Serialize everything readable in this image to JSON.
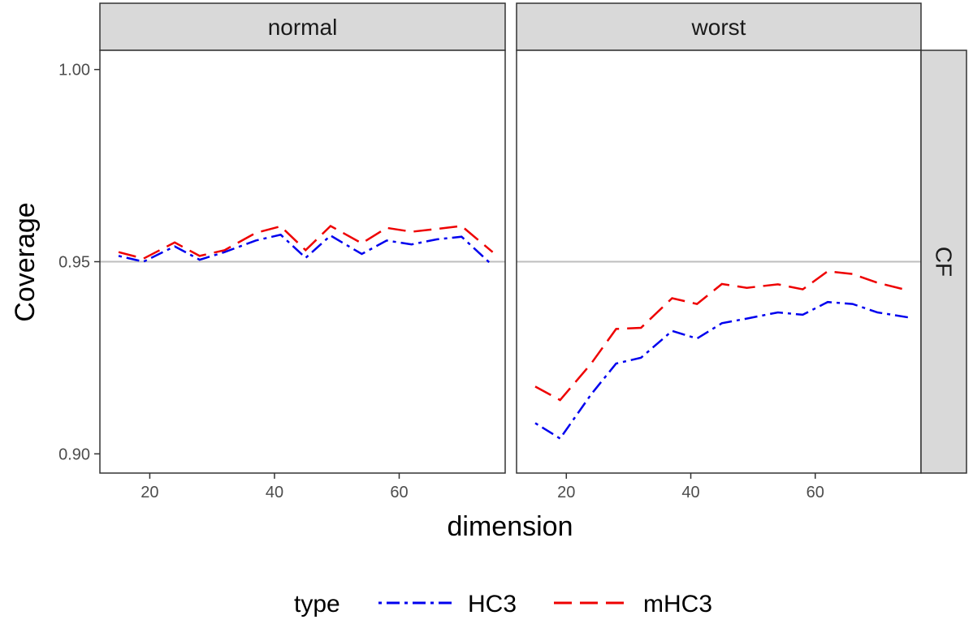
{
  "chart_data": {
    "type": "line",
    "xlabel": "dimension",
    "ylabel": "Coverage",
    "xlim": [
      12,
      77
    ],
    "ylim": [
      0.895,
      1.005
    ],
    "x_ticks": [
      20,
      40,
      60
    ],
    "x_tick_labels": [
      "20",
      "40",
      "60"
    ],
    "y_ticks": [
      0.9,
      0.95,
      1.0
    ],
    "y_tick_labels": [
      "0.90",
      "0.95",
      "1.00"
    ],
    "reference_line": 0.95,
    "grid": false,
    "row_strip": "CF",
    "legend": {
      "title": "type",
      "position": "bottom",
      "entries": [
        "HC3",
        "mHC3"
      ]
    },
    "panels": [
      {
        "strip": "normal",
        "x": [
          15,
          19,
          24,
          28,
          32,
          37,
          41,
          45,
          49,
          54,
          58,
          62,
          66,
          70,
          75
        ],
        "series": [
          {
            "name": "HC3",
            "color": "#0000ee",
            "dash": "dotdash",
            "values": [
              0.9515,
              0.95,
              0.954,
              0.9505,
              0.9525,
              0.9555,
              0.957,
              0.951,
              0.9568,
              0.952,
              0.9555,
              0.9545,
              0.9558,
              0.9565,
              0.949
            ]
          },
          {
            "name": "mHC3",
            "color": "#ee0000",
            "dash": "longdash",
            "values": [
              0.9525,
              0.9508,
              0.955,
              0.9515,
              0.953,
              0.9575,
              0.9592,
              0.953,
              0.9593,
              0.9548,
              0.9588,
              0.9578,
              0.9585,
              0.9593,
              0.9525
            ]
          }
        ]
      },
      {
        "strip": "worst",
        "x": [
          15,
          19,
          24,
          28,
          32,
          37,
          41,
          45,
          49,
          54,
          58,
          62,
          66,
          70,
          75
        ],
        "series": [
          {
            "name": "HC3",
            "color": "#0000ee",
            "dash": "dotdash",
            "values": [
              0.908,
              0.904,
              0.9155,
              0.9235,
              0.925,
              0.932,
              0.93,
              0.934,
              0.9352,
              0.9368,
              0.9362,
              0.9395,
              0.939,
              0.9368,
              0.9355
            ]
          },
          {
            "name": "mHC3",
            "color": "#ee0000",
            "dash": "longdash",
            "values": [
              0.9175,
              0.914,
              0.9235,
              0.9325,
              0.9328,
              0.9405,
              0.939,
              0.9442,
              0.9432,
              0.9441,
              0.9428,
              0.9475,
              0.9468,
              0.9445,
              0.9425
            ]
          }
        ]
      }
    ]
  }
}
